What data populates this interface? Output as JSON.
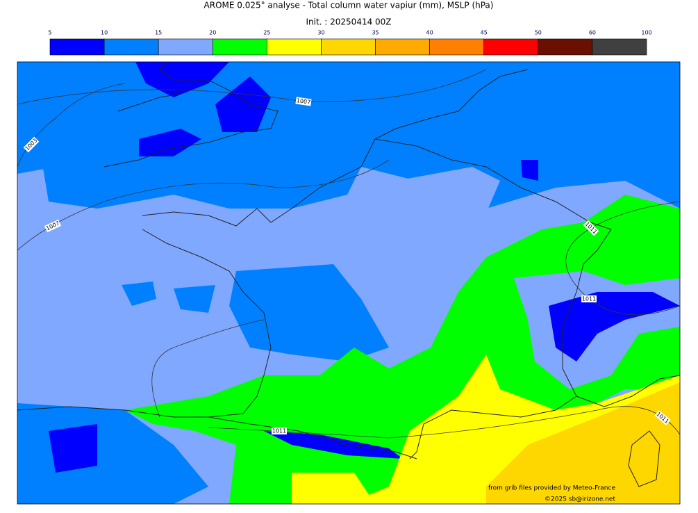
{
  "header": {
    "title": "AROME 0.025° analyse - Total column water vapiur (mm), MSLP (hPa)",
    "init": "Init. : 20250414 00Z"
  },
  "colorbar": {
    "ticks": [
      5,
      10,
      15,
      20,
      25,
      30,
      35,
      40,
      45,
      50,
      60,
      100
    ],
    "colors": [
      "#0000ff",
      "#0080ff",
      "#80a8ff",
      "#00ff00",
      "#ffff00",
      "#ffd700",
      "#ffaa00",
      "#ff8000",
      "#ff0000",
      "#6b0f00",
      "#404040"
    ]
  },
  "map": {
    "isobar_labels": [
      1007,
      1003,
      1007,
      1011,
      1011,
      1011,
      1011
    ]
  },
  "credits": {
    "source": "from grib files provided by Meteo-France",
    "copyright": "©2025 sb@irizone.net"
  }
}
